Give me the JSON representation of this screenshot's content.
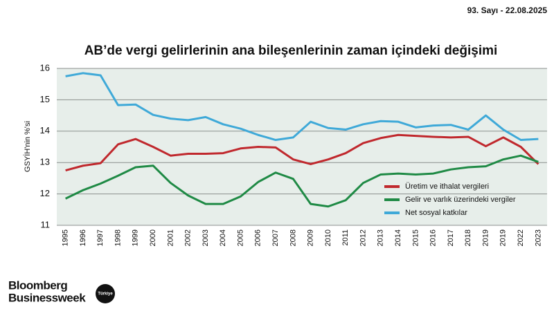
{
  "header": {
    "issue": "93. Sayı - 22.08.2025"
  },
  "footer": {
    "brand_line1": "Bloomberg",
    "brand_line2": "Businessweek",
    "badge": "Türkiye"
  },
  "chart_data": {
    "type": "line",
    "title": "AB’de vergi gelirlerinin ana bileşenlerinin zaman içindeki değişimi",
    "y_label": "GSYİH'nin %'si",
    "categories": [
      "1995",
      "1996",
      "1997",
      "1998",
      "1999",
      "2000",
      "2001",
      "2002",
      "2003",
      "2004",
      "2005",
      "2006",
      "2007",
      "2008",
      "2009",
      "2010",
      "2011",
      "2012",
      "2013",
      "2014",
      "2015",
      "2016",
      "2017",
      "2018",
      "2019",
      "2019",
      "2022",
      "2023"
    ],
    "series": [
      {
        "name": "Üretim ve ithalat vergileri",
        "color": "#c0282d",
        "values": [
          12.75,
          12.9,
          12.98,
          13.58,
          13.75,
          13.5,
          13.22,
          13.28,
          13.28,
          13.3,
          13.45,
          13.5,
          13.48,
          13.1,
          12.95,
          13.1,
          13.3,
          13.62,
          13.78,
          13.88,
          13.85,
          13.82,
          13.8,
          13.82,
          13.52,
          13.8,
          13.5,
          12.95
        ]
      },
      {
        "name": "Gelir ve varlık üzerindeki vergiler",
        "color": "#1f8a45",
        "values": [
          11.85,
          12.12,
          12.33,
          12.58,
          12.85,
          12.9,
          12.35,
          11.95,
          11.68,
          11.68,
          11.92,
          12.38,
          12.68,
          12.48,
          11.68,
          11.6,
          11.8,
          12.35,
          12.62,
          12.65,
          12.62,
          12.65,
          12.78,
          12.85,
          12.88,
          13.1,
          13.22,
          13.02
        ]
      },
      {
        "name": "Net sosyal katkılar",
        "color": "#3fa9d8",
        "values": [
          15.75,
          15.85,
          15.78,
          14.83,
          14.85,
          14.52,
          14.4,
          14.35,
          14.45,
          14.22,
          14.08,
          13.88,
          13.72,
          13.8,
          14.3,
          14.1,
          14.05,
          14.22,
          14.32,
          14.3,
          14.12,
          14.18,
          14.2,
          14.05,
          14.5,
          14.05,
          13.72,
          13.75
        ]
      }
    ],
    "ylim": [
      11,
      16
    ],
    "yticks": [
      11,
      12,
      13,
      14,
      15,
      16
    ],
    "grid": true,
    "legend": "right"
  }
}
